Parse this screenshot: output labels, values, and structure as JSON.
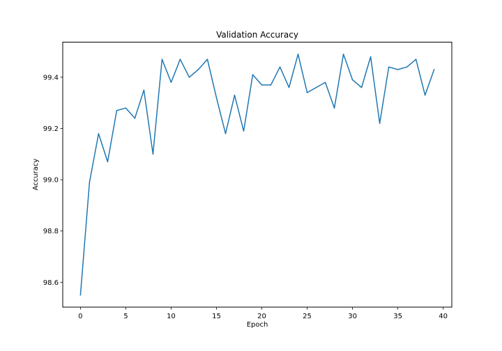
{
  "chart_data": {
    "type": "line",
    "title": "Validation Accuracy",
    "xlabel": "Epoch",
    "ylabel": "Accuracy",
    "xlim": [
      -1.95,
      40.95
    ],
    "ylim": [
      98.503,
      99.537
    ],
    "xticks": [
      0,
      5,
      10,
      15,
      20,
      25,
      30,
      35,
      40
    ],
    "yticks": [
      98.6,
      98.8,
      99.0,
      99.2,
      99.4
    ],
    "xtick_labels": [
      "0",
      "5",
      "10",
      "15",
      "20",
      "25",
      "30",
      "35",
      "40"
    ],
    "ytick_labels": [
      "98.6",
      "98.8",
      "99.0",
      "99.2",
      "99.4"
    ],
    "grid": false,
    "legend": "none",
    "series": [
      {
        "color": "#1f77b4",
        "x": [
          0,
          1,
          2,
          3,
          4,
          5,
          6,
          7,
          8,
          9,
          10,
          11,
          12,
          13,
          14,
          15,
          16,
          17,
          18,
          19,
          20,
          21,
          22,
          23,
          24,
          25,
          26,
          27,
          28,
          29,
          30,
          31,
          32,
          33,
          34,
          35,
          36,
          37,
          38,
          39
        ],
        "y": [
          98.55,
          98.99,
          99.18,
          99.07,
          99.27,
          99.28,
          99.24,
          99.35,
          99.1,
          99.47,
          99.38,
          99.47,
          99.4,
          99.43,
          99.47,
          99.32,
          99.18,
          99.33,
          99.19,
          99.41,
          99.37,
          99.37,
          99.44,
          99.36,
          99.49,
          99.34,
          99.36,
          99.38,
          99.28,
          99.49,
          99.39,
          99.36,
          99.48,
          99.22,
          99.44,
          99.43,
          99.44,
          99.47,
          99.33,
          99.43
        ]
      }
    ]
  }
}
